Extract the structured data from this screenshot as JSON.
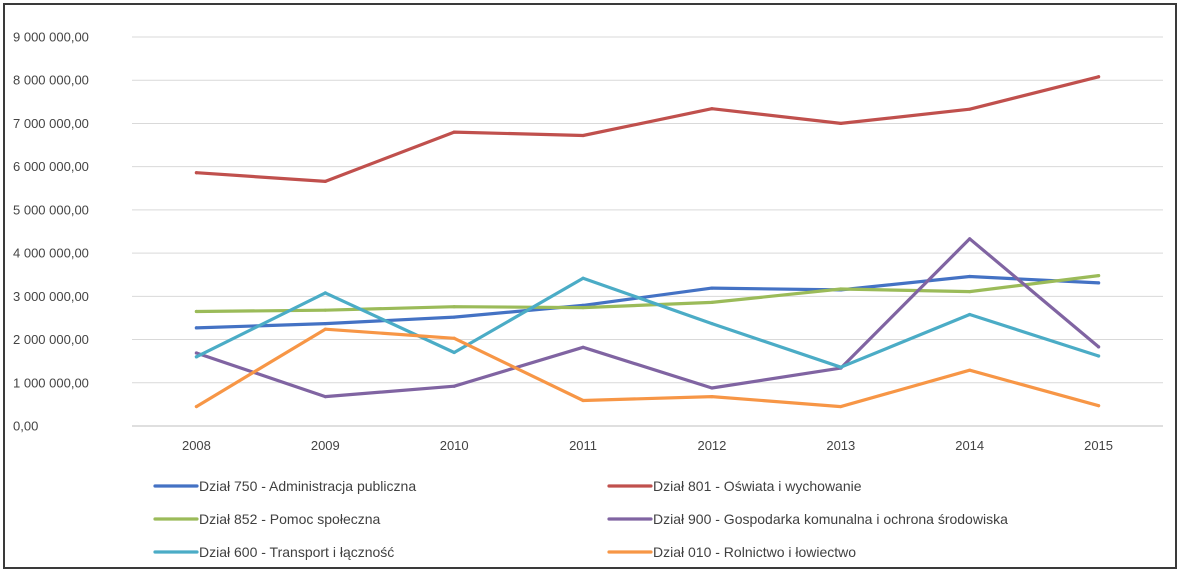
{
  "chart_data": {
    "type": "line",
    "title": "",
    "xlabel": "",
    "ylabel": "",
    "categories": [
      "2008",
      "2009",
      "2010",
      "2011",
      "2012",
      "2013",
      "2014",
      "2015"
    ],
    "ylim": [
      0,
      9000000
    ],
    "yticks": [
      0,
      1000000,
      2000000,
      3000000,
      4000000,
      5000000,
      6000000,
      7000000,
      8000000,
      9000000
    ],
    "ytick_labels": [
      "0,00",
      "1 000 000,00",
      "2 000 000,00",
      "3 000 000,00",
      "4 000 000,00",
      "5 000 000,00",
      "6 000 000,00",
      "7 000 000,00",
      "8 000 000,00",
      "9 000 000,00"
    ],
    "grid": "horizontal",
    "legend_position": "bottom",
    "series": [
      {
        "name": "Dział 750 - Administracja publiczna",
        "color": "#4472c4",
        "values": [
          2270000,
          2370000,
          2520000,
          2790000,
          3190000,
          3150000,
          3460000,
          3310000
        ]
      },
      {
        "name": "Dział 801 - Oświata i wychowanie",
        "color": "#c0504d",
        "values": [
          5860000,
          5660000,
          6800000,
          6720000,
          7340000,
          7000000,
          7330000,
          8080000
        ]
      },
      {
        "name": "Dział 852 - Pomoc społeczna",
        "color": "#9bbb59",
        "values": [
          2650000,
          2680000,
          2760000,
          2740000,
          2860000,
          3170000,
          3110000,
          3480000
        ]
      },
      {
        "name": "Dział 900 - Gospodarka komunalna i ochrona środowiska",
        "color": "#8064a2",
        "values": [
          1690000,
          680000,
          920000,
          1820000,
          880000,
          1340000,
          4330000,
          1830000
        ]
      },
      {
        "name": "Dział 600 - Transport i łączność",
        "color": "#4bacc6",
        "values": [
          1600000,
          3080000,
          1700000,
          3420000,
          2370000,
          1360000,
          2580000,
          1620000
        ]
      },
      {
        "name": "Dział 010 - Rolnictwo i łowiectwo",
        "color": "#f79646",
        "values": [
          450000,
          2240000,
          2030000,
          590000,
          680000,
          450000,
          1290000,
          470000
        ]
      }
    ]
  }
}
